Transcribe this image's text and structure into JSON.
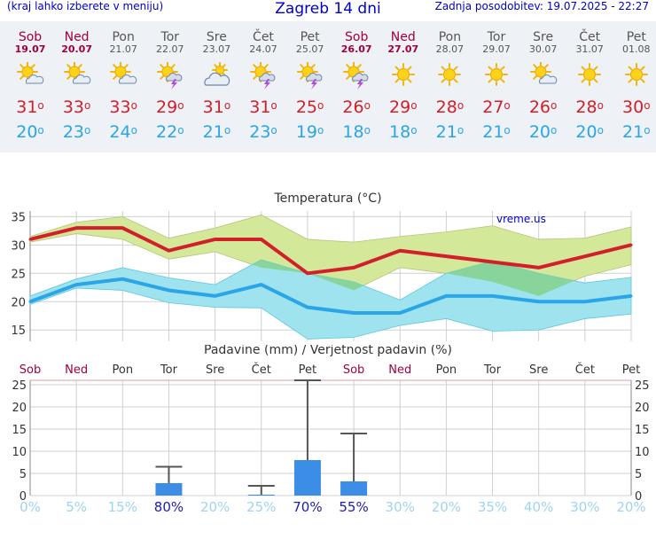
{
  "header": {
    "hint": "(kraj lahko izberete v meniju)",
    "title": "Zagreb 14 dni",
    "updated": "Zadnja posodobitev: 19.07.2025 - 22:27"
  },
  "days": [
    {
      "name": "Sob",
      "date": "19.07",
      "weekend": true,
      "icon": "sun-cloud-icon",
      "max": "31",
      "min": "20"
    },
    {
      "name": "Ned",
      "date": "20.07",
      "weekend": true,
      "icon": "sun-cloud-icon",
      "max": "33",
      "min": "23"
    },
    {
      "name": "Pon",
      "date": "21.07",
      "weekend": false,
      "icon": "sun-cloud-icon",
      "max": "33",
      "min": "24"
    },
    {
      "name": "Tor",
      "date": "22.07",
      "weekend": false,
      "icon": "sun-storm-icon",
      "max": "29",
      "min": "22"
    },
    {
      "name": "Sre",
      "date": "23.07",
      "weekend": false,
      "icon": "sun-behind-cloud-icon",
      "max": "31",
      "min": "21"
    },
    {
      "name": "Čet",
      "date": "24.07",
      "weekend": false,
      "icon": "sun-storm-icon",
      "max": "31",
      "min": "23"
    },
    {
      "name": "Pet",
      "date": "25.07",
      "weekend": false,
      "icon": "sun-storm-icon",
      "max": "25",
      "min": "19"
    },
    {
      "name": "Sob",
      "date": "26.07",
      "weekend": true,
      "icon": "sun-storm-icon",
      "max": "26",
      "min": "18"
    },
    {
      "name": "Ned",
      "date": "27.07",
      "weekend": true,
      "icon": "sun-icon",
      "max": "29",
      "min": "18"
    },
    {
      "name": "Pon",
      "date": "28.07",
      "weekend": false,
      "icon": "sun-icon",
      "max": "28",
      "min": "21"
    },
    {
      "name": "Tor",
      "date": "29.07",
      "weekend": false,
      "icon": "sun-icon",
      "max": "27",
      "min": "21"
    },
    {
      "name": "Sre",
      "date": "30.07",
      "weekend": false,
      "icon": "sun-cloud-icon",
      "max": "26",
      "min": "20"
    },
    {
      "name": "Čet",
      "date": "31.07",
      "weekend": false,
      "icon": "sun-icon",
      "max": "28",
      "min": "20"
    },
    {
      "name": "Pet",
      "date": "01.08",
      "weekend": false,
      "icon": "sun-icon",
      "max": "30",
      "min": "21"
    }
  ],
  "colors": {
    "max": "#d2202a",
    "min": "#2aa5e8",
    "max_band": "#d4e89a",
    "min_band": "#9fe3ef",
    "overlap": "#88d49a",
    "bar": "#3b8de6",
    "weekend": "#a00040"
  },
  "chart_data": [
    {
      "type": "line",
      "title": "Temperatura (°C)",
      "watermark": "vreme.us",
      "categories": [
        "Sob",
        "Ned",
        "Pon",
        "Tor",
        "Sre",
        "Čet",
        "Pet",
        "Sob",
        "Ned",
        "Pon",
        "Tor",
        "Sre",
        "Čet",
        "Pet"
      ],
      "ylim": [
        13,
        36
      ],
      "yticks": [
        15,
        20,
        25,
        30,
        35
      ],
      "grid": true,
      "series": [
        {
          "values": [
            31,
            33,
            33,
            29,
            31,
            31,
            25,
            26,
            29,
            28,
            27,
            26,
            28,
            30
          ]
        },
        {
          "values": [
            20,
            23,
            24,
            22,
            21,
            23,
            19,
            18,
            18,
            21,
            21,
            20,
            20,
            21
          ]
        }
      ],
      "bands": [
        {
          "upper": [
            31.5,
            34,
            35,
            31.2,
            33,
            35.3,
            31,
            30.5,
            31.5,
            32.3,
            33.4,
            31,
            31.2,
            33.2
          ],
          "lower": [
            30.5,
            32,
            31,
            27.5,
            28.8,
            26,
            25,
            22,
            26,
            25,
            23.5,
            21,
            24.5,
            26.5
          ]
        },
        {
          "upper": [
            21,
            24,
            26,
            24.2,
            23,
            27.4,
            25,
            23.5,
            20.3,
            25,
            27.2,
            25,
            23.3,
            24.3
          ],
          "lower": [
            19.5,
            22.4,
            22,
            19.8,
            19,
            18.9,
            13.4,
            13.7,
            15.8,
            17,
            14.8,
            15,
            17,
            17.8
          ]
        }
      ]
    },
    {
      "type": "bar",
      "title": "Padavine (mm) / Verjetnost padavin (%)",
      "categories": [
        "Sob",
        "Ned",
        "Pon",
        "Tor",
        "Sre",
        "Čet",
        "Pet",
        "Sob",
        "Ned",
        "Pon",
        "Tor",
        "Sre",
        "Čet",
        "Pet"
      ],
      "ylim": [
        0,
        26
      ],
      "yticks": [
        0,
        5,
        10,
        15,
        20,
        25
      ],
      "values": [
        0,
        0,
        0,
        2.8,
        0,
        0.2,
        8,
        3.2,
        0,
        0,
        0,
        0,
        0,
        0
      ],
      "error_max": [
        null,
        null,
        null,
        6.5,
        null,
        2.2,
        26,
        14,
        null,
        null,
        null,
        null,
        null,
        null
      ],
      "probabilities": [
        "0%",
        "5%",
        "15%",
        "80%",
        "20%",
        "25%",
        "70%",
        "55%",
        "30%",
        "20%",
        "35%",
        "40%",
        "30%",
        "20%"
      ]
    }
  ]
}
